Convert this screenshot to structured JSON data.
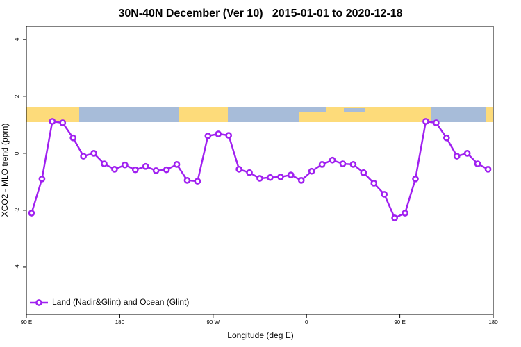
{
  "chart_data": {
    "type": "line",
    "title": "30N-40N December (Ver 10)   2015-01-01 to 2020-12-18",
    "x_label": "Longitude (deg E)",
    "y_label": "XCO2 - MLO trend (ppm)",
    "x": [
      95,
      105,
      115,
      125,
      135,
      145,
      155,
      165,
      175,
      185,
      195,
      205,
      215,
      225,
      235,
      245,
      255,
      265,
      275,
      285,
      295,
      305,
      315,
      325,
      335,
      345,
      355,
      365,
      375,
      385,
      395,
      405,
      415,
      425,
      435,
      445,
      455,
      465,
      475,
      485,
      495,
      505,
      515,
      525,
      535
    ],
    "series": [
      {
        "name": "Land (Nadir&Glint) and Ocean (Glint)",
        "color": "#a020f0",
        "values": [
          -2.1,
          -0.9,
          1.12,
          1.07,
          0.54,
          -0.1,
          0.0,
          -0.37,
          -0.56,
          -0.41,
          -0.58,
          -0.46,
          -0.61,
          -0.58,
          -0.39,
          -0.95,
          -0.98,
          0.61,
          0.68,
          0.63,
          -0.56,
          -0.68,
          -0.88,
          -0.85,
          -0.83,
          -0.76,
          -0.95,
          -0.63,
          -0.39,
          -0.24,
          -0.37,
          -0.39,
          -0.68,
          -1.05,
          -1.44,
          -2.27,
          -2.1,
          -0.9,
          1.12,
          1.07,
          0.54,
          -0.1,
          0.0,
          -0.37,
          -0.56
        ]
      }
    ],
    "xlim": [
      90,
      540
    ],
    "xticks": [
      {
        "value": 90,
        "label": "90 E"
      },
      180,
      {
        "value": 270,
        "label": "90 W"
      },
      {
        "value": 360,
        "label": "0"
      },
      {
        "value": 450,
        "label": "90 E"
      },
      {
        "value": 540,
        "label": "180"
      }
    ],
    "ylim": [
      -5.66,
      4.46
    ],
    "yticks": [
      -4,
      -2,
      0,
      2,
      4
    ],
    "legend": "bottom-left"
  }
}
